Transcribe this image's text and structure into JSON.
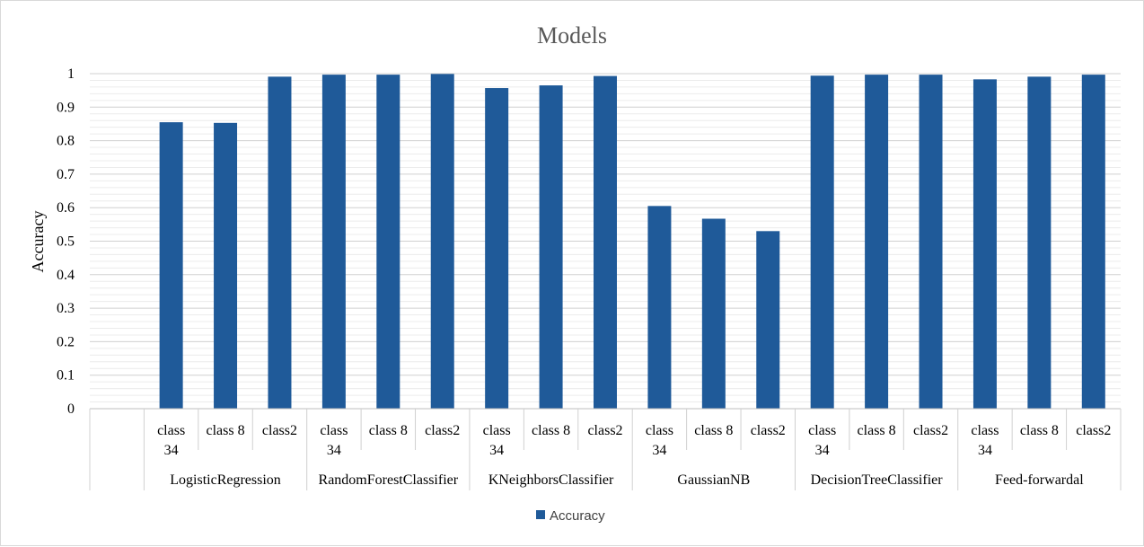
{
  "chart_data": {
    "type": "bar",
    "title": "Models",
    "ylabel": "Accuracy",
    "xlabel": "",
    "ylim": [
      0,
      1
    ],
    "yticks": [
      "0",
      "0.1",
      "0.2",
      "0.3",
      "0.4",
      "0.5",
      "0.6",
      "0.7",
      "0.8",
      "0.9",
      "1"
    ],
    "grid": true,
    "legend": "bottom",
    "bar_color": "#1F5A99",
    "groups": [
      {
        "name": "",
        "categories": [
          ""
        ],
        "values": [
          null
        ]
      },
      {
        "name": "LogisticRegression",
        "categories": [
          "class 34",
          "class 8",
          "class2"
        ],
        "values": [
          0.855,
          0.853,
          0.991
        ]
      },
      {
        "name": "RandomForestClassifier",
        "categories": [
          "class 34",
          "class 8",
          "class2"
        ],
        "values": [
          0.997,
          0.997,
          0.999
        ]
      },
      {
        "name": "KNeighborsClassifier",
        "categories": [
          "class 34",
          "class 8",
          "class2"
        ],
        "values": [
          0.957,
          0.965,
          0.993
        ]
      },
      {
        "name": "GaussianNB",
        "categories": [
          "class 34",
          "class 8",
          "class2"
        ],
        "values": [
          0.605,
          0.567,
          0.53
        ]
      },
      {
        "name": "DecisionTreeClassifier",
        "categories": [
          "class 34",
          "class 8",
          "class2"
        ],
        "values": [
          0.994,
          0.997,
          0.997
        ]
      },
      {
        "name": "Feed-forwardal",
        "categories": [
          "class 34",
          "class 8",
          "class2"
        ],
        "values": [
          0.983,
          0.991,
          0.997
        ]
      }
    ],
    "series": [
      {
        "name": "Accuracy"
      }
    ]
  }
}
